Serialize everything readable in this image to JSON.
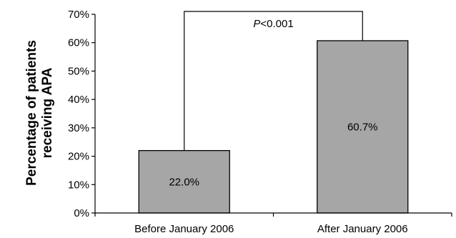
{
  "chart_data": {
    "type": "bar",
    "categories": [
      "Before January 2006",
      "After January 2006"
    ],
    "values": [
      22.0,
      60.7
    ],
    "data_labels": [
      "22.0%",
      "60.7%"
    ],
    "ylabel_lines": [
      "Percentage of patients",
      "receiving APA"
    ],
    "xlabel": "",
    "ylim": [
      0,
      70
    ],
    "yticks": [
      0,
      10,
      20,
      30,
      40,
      50,
      60,
      70
    ],
    "ytick_labels": [
      "0%",
      "10%",
      "20%",
      "30%",
      "40%",
      "50%",
      "60%",
      "70%"
    ],
    "grid": false,
    "bar_color": "#a6a6a6",
    "significance": {
      "prefix": "P",
      "suffix": "<0.001",
      "bracket_top": 71
    }
  }
}
